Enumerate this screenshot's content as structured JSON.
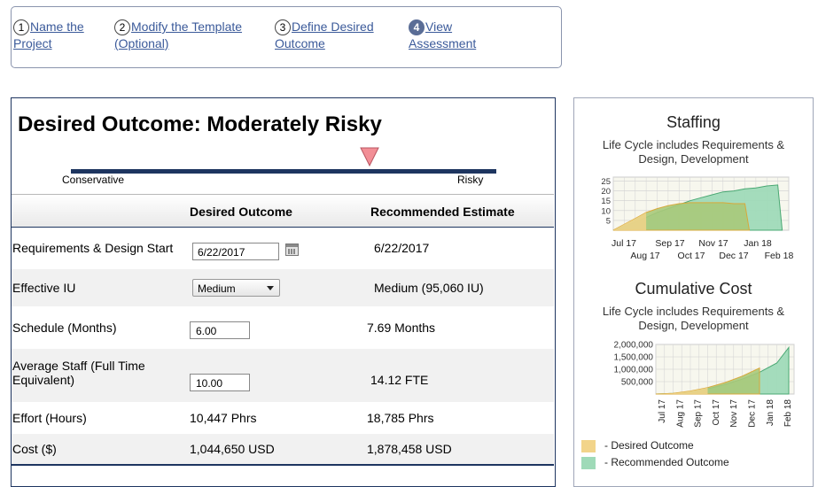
{
  "wizard": {
    "steps": [
      {
        "num": "1",
        "line1": "Name the",
        "line2": "Project"
      },
      {
        "num": "2",
        "line1": "Modify the Template",
        "line2": "(Optional)"
      },
      {
        "num": "3",
        "line1": "Define Desired",
        "line2": "Outcome"
      },
      {
        "num": "4",
        "line1": "View",
        "line2": "Assessment",
        "active": true
      }
    ]
  },
  "outcome": {
    "title": "Desired Outcome: Moderately Risky",
    "scale_left": "Conservative",
    "scale_right": "Risky",
    "risk_level": 0.7
  },
  "table": {
    "col_desired": "Desired Outcome",
    "col_recommended": "Recommended Estimate",
    "rows": {
      "req_start": {
        "label": "Requirements & Design Start",
        "value": "6/22/2017",
        "recommended": "6/22/2017"
      },
      "effective_iu": {
        "label": "Effective IU",
        "value": "Medium",
        "recommended": "Medium (95,060 IU)"
      },
      "schedule": {
        "label": "Schedule (Months)",
        "value": "6.00",
        "recommended": "7.69 Months"
      },
      "avg_staff": {
        "label1": "Average Staff (Full Time",
        "label2": "Equivalent)",
        "value": "10.00",
        "recommended": "14.12 FTE"
      },
      "effort": {
        "label": "Effort (Hours)",
        "value": "10,447 Phrs",
        "recommended": "18,785 Phrs"
      },
      "cost": {
        "label": "Cost ($)",
        "value": "1,044,650 USD",
        "recommended": "1,878,458 USD"
      }
    }
  },
  "colors": {
    "desired": "#f2d48a",
    "recommended": "#9fdab8",
    "overlap": "#a9c97a",
    "navy": "#1e3560",
    "marker": "#f28e96"
  },
  "chart_data": [
    {
      "type": "area",
      "title": "Staffing",
      "subtitle1": "Life Cycle includes Requirements &",
      "subtitle2": "Design, Development",
      "x_labels_top": [
        "Jul 17",
        "Sep 17",
        "Nov 17",
        "Jan 18"
      ],
      "x_labels_bottom": [
        "Aug 17",
        "Oct 17",
        "Dec 17",
        "Feb 18"
      ],
      "yticks": [
        "5",
        "10",
        "15",
        "20",
        "25"
      ],
      "ylim": [
        0,
        27
      ],
      "series": [
        {
          "name": "Desired Outcome",
          "points": [
            [
              0,
              0
            ],
            [
              0.5,
              3
            ],
            [
              1,
              6
            ],
            [
              1.5,
              9
            ],
            [
              2,
              11
            ],
            [
              2.5,
              12.5
            ],
            [
              3,
              13.5
            ],
            [
              3.5,
              14
            ],
            [
              4,
              14
            ],
            [
              4.5,
              14
            ],
            [
              5,
              14
            ],
            [
              5.5,
              13.5
            ],
            [
              6,
              13.5
            ],
            [
              6.2,
              0
            ]
          ]
        },
        {
          "name": "Recommended Outcome",
          "points": [
            [
              0,
              0
            ],
            [
              0.5,
              2
            ],
            [
              1,
              4
            ],
            [
              1.5,
              6.5
            ],
            [
              2,
              9
            ],
            [
              2.5,
              11
            ],
            [
              3,
              13
            ],
            [
              3.5,
              15
            ],
            [
              4,
              16.5
            ],
            [
              4.5,
              18
            ],
            [
              5,
              19.5
            ],
            [
              5.5,
              20
            ],
            [
              6,
              21
            ],
            [
              6.5,
              21.5
            ],
            [
              7,
              22.5
            ],
            [
              7.5,
              23
            ],
            [
              7.7,
              0
            ]
          ]
        }
      ]
    },
    {
      "type": "area",
      "title": "Cumulative Cost",
      "subtitle1": "Life Cycle includes Requirements &",
      "subtitle2": "Design, Development",
      "x_labels": [
        "Jul 17",
        "Aug 17",
        "Sep 17",
        "Oct 17",
        "Nov 17",
        "Dec 17",
        "Jan 18",
        "Feb 18"
      ],
      "yticks": [
        "500,000",
        "1,000,000",
        "1,500,000",
        "2,000,000"
      ],
      "ylim": [
        0,
        2000000
      ],
      "series": [
        {
          "name": "Desired Outcome",
          "points": [
            [
              0,
              0
            ],
            [
              1,
              30000
            ],
            [
              2,
              120000
            ],
            [
              3,
              260000
            ],
            [
              4,
              460000
            ],
            [
              5,
              720000
            ],
            [
              6,
              1044650
            ],
            [
              6,
              0
            ]
          ]
        },
        {
          "name": "Recommended Outcome",
          "points": [
            [
              0,
              0
            ],
            [
              1,
              25000
            ],
            [
              2,
              95000
            ],
            [
              3,
              210000
            ],
            [
              4,
              380000
            ],
            [
              5,
              600000
            ],
            [
              6,
              880000
            ],
            [
              7,
              1250000
            ],
            [
              7.69,
              1878458
            ],
            [
              7.69,
              0
            ]
          ]
        }
      ]
    }
  ],
  "legend": {
    "desired": "- Desired Outcome",
    "recommended": "- Recommended Outcome"
  }
}
